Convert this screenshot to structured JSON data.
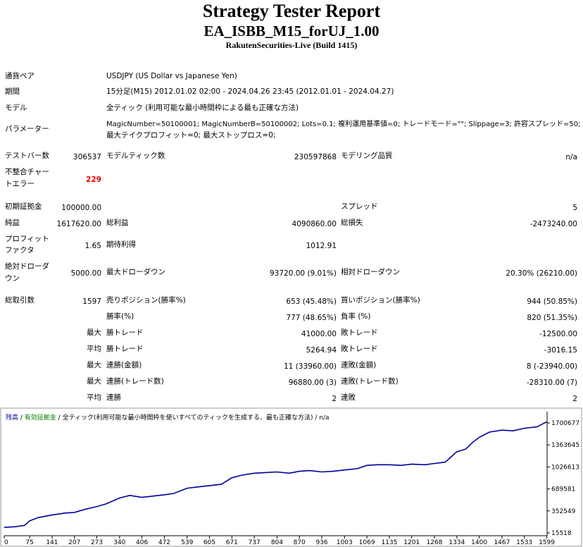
{
  "header": {
    "title": "Strategy Tester Report",
    "subtitle": "EA_ISBB_M15_forUJ_1.00",
    "server": "RakutenSecurities-Live (Build 1415)"
  },
  "info": {
    "pair_label": "通貨ペア",
    "pair_value": "USDJPY (US Dollar vs Japanese Yen)",
    "period_label": "期間",
    "period_value": "15分足(M15) 2012.01.02 02:00 - 2024.04.26 23:45 (2012.01.01 - 2024.04.27)",
    "model_label": "モデル",
    "model_value": "全ティック (利用可能な最小時間枠による最も正確な方法)",
    "params_label": "パラメーター",
    "params_line1": "MagicNumber=50100001; MagicNumberB=50100002; Lots=0.1; 複利運用基準値=0; トレードモード=\"\"; Slippage=3; 許容スプレッド=50;",
    "params_line2": "最大テイクプロフィット=0; 最大ストップロス=0;"
  },
  "stats": {
    "bars_label": "テストバー数",
    "bars_value": "306537",
    "ticks_label": "モデルティック数",
    "ticks_value": "230597868",
    "quality_label": "モデリング品質",
    "quality_value": "n/a",
    "mismatch_label_1": "不整合チャー",
    "mismatch_label_2": "トエラー",
    "mismatch_value": "229",
    "deposit_label": "初期証拠金",
    "deposit_value": "100000.00",
    "spread_label": "スプレッド",
    "spread_value": "5",
    "net_label": "純益",
    "net_value": "1617620.00",
    "gross_profit_label": "総利益",
    "gross_profit_value": "4090860.00",
    "gross_loss_label": "総損失",
    "gross_loss_value": "-2473240.00",
    "pf_label_1": "プロフィット",
    "pf_label_2": "ファクタ",
    "pf_value": "1.65",
    "expected_label": "期待利得",
    "expected_value": "1012.91",
    "abs_dd_label_1": "絶対ドローダ",
    "abs_dd_label_2": "ウン",
    "abs_dd_value": "5000.00",
    "max_dd_label": "最大ドローダウン",
    "max_dd_value": "93720.00 (9.01%)",
    "rel_dd_label": "相対ドローダウン",
    "rel_dd_value": "20.30% (26210.00)",
    "total_label": "総取引数",
    "total_value": "1597",
    "short_label": "売りポジション(勝率%)",
    "short_value": "653 (45.48%)",
    "long_label": "買いポジション(勝率%)",
    "long_value": "944 (50.85%)",
    "winrate_label": "勝率(%)",
    "winrate_value": "777 (48.65%)",
    "lossrate_label": "負率 (%)",
    "lossrate_value": "820 (51.35%)",
    "max_word": "最大",
    "avg_word": "平均",
    "largest_win_label": "勝トレード",
    "largest_win_value": "41000.00",
    "largest_loss_label": "敗トレード",
    "largest_loss_value": "-12500.00",
    "avg_win_label": "勝トレード",
    "avg_win_value": "5264.94",
    "avg_loss_label": "敗トレード",
    "avg_loss_value": "-3016.15",
    "cons_wins_amt_label": "連勝(金額)",
    "cons_wins_amt_value": "11 (33960.00)",
    "cons_losses_amt_label": "連敗(金額)",
    "cons_losses_amt_value": "8 (-23940.00)",
    "cons_wins_cnt_label": "連勝(トレード数)",
    "cons_wins_cnt_value": "96880.00 (3)",
    "cons_losses_cnt_label": "連敗(トレード数)",
    "cons_losses_cnt_value": "-28310.00 (7)",
    "avg_cons_wins_label": "連勝",
    "avg_cons_wins_value": "2",
    "avg_cons_losses_label": "連敗",
    "avg_cons_losses_value": "2"
  },
  "legend": {
    "balance": "残高",
    "sep1": " / ",
    "equity": "有効証拠金",
    "sep2": " / ",
    "model": "全ティック(利用可能な最小時間枠を使いすべてのティックを生成する、最も正確な方法)",
    "sep3": " / ",
    "quality": "n/a"
  },
  "chart_data": {
    "type": "line",
    "xlabel": "",
    "ylabel": "",
    "x_ticks": [
      0,
      75,
      141,
      207,
      273,
      340,
      406,
      472,
      539,
      605,
      671,
      737,
      804,
      870,
      936,
      1003,
      1069,
      1135,
      1201,
      1268,
      1334,
      1400,
      1467,
      1533,
      1599
    ],
    "y_ticks": [
      15518,
      352549,
      689581,
      1026613,
      1363645,
      1700677
    ],
    "xlim": [
      0,
      1600
    ],
    "ylim": [
      15518,
      1700677
    ],
    "grid": false,
    "colors": {
      "balance": "#000099",
      "axis": "#000000"
    },
    "series": [
      {
        "name": "残高",
        "x": [
          0,
          30,
          60,
          75,
          100,
          141,
          180,
          207,
          240,
          273,
          300,
          340,
          370,
          406,
          440,
          472,
          500,
          539,
          570,
          605,
          640,
          671,
          700,
          737,
          770,
          804,
          840,
          870,
          900,
          936,
          970,
          1003,
          1040,
          1069,
          1100,
          1135,
          1170,
          1201,
          1240,
          1268,
          1300,
          1334,
          1360,
          1380,
          1400,
          1430,
          1467,
          1500,
          1533,
          1570,
          1599
        ],
        "y": [
          100000,
          110000,
          130000,
          200000,
          250000,
          290000,
          320000,
          330000,
          380000,
          420000,
          460000,
          550000,
          590000,
          560000,
          580000,
          600000,
          620000,
          700000,
          720000,
          740000,
          760000,
          860000,
          900000,
          930000,
          940000,
          950000,
          930000,
          960000,
          970000,
          950000,
          960000,
          980000,
          1000000,
          1050000,
          1060000,
          1060000,
          1050000,
          1070000,
          1060000,
          1080000,
          1100000,
          1260000,
          1300000,
          1400000,
          1480000,
          1560000,
          1590000,
          1580000,
          1620000,
          1640000,
          1717620
        ]
      }
    ]
  }
}
